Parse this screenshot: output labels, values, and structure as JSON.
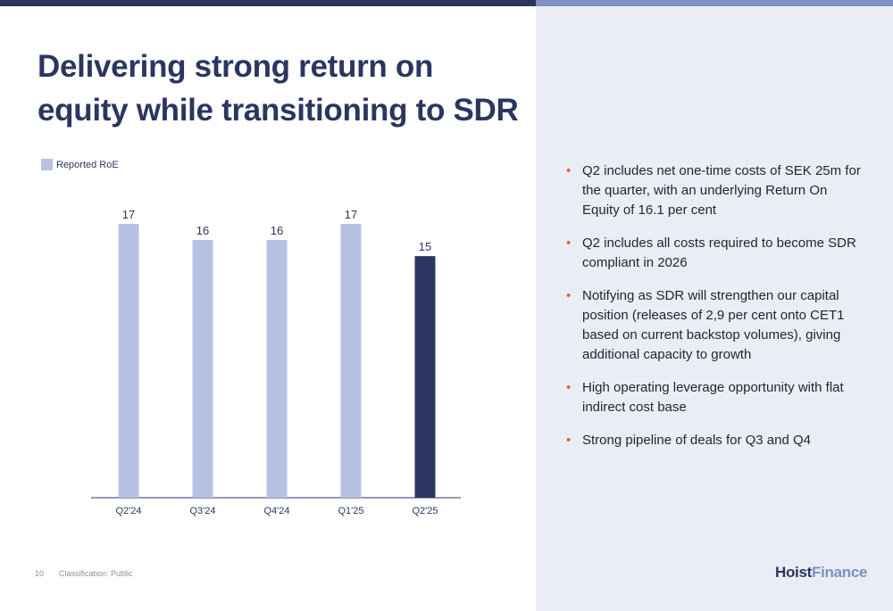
{
  "title": "Delivering strong return on equity while transitioning to SDR",
  "chart_data": {
    "type": "bar",
    "categories": [
      "Q2'24",
      "Q3'24",
      "Q4'24",
      "Q1'25",
      "Q2'25"
    ],
    "series": [
      {
        "name": "Reported RoE",
        "values": [
          17,
          16,
          16,
          17,
          15
        ]
      }
    ],
    "value_labels": [
      "17",
      "16",
      "16",
      "17",
      "15"
    ],
    "bar_colors": [
      "#b8c0e4",
      "#b8c0e4",
      "#b8c0e4",
      "#b8c0e4",
      "#2b3660"
    ],
    "legend": {
      "label": "Reported RoE",
      "color": "#b8c0e4",
      "position": "top-left"
    },
    "ylim": [
      0,
      17.5
    ],
    "grid": false,
    "xlabel": "",
    "ylabel": ""
  },
  "bullets": [
    "Q2 includes net one-time costs of SEK 25m for the quarter, with an underlying Return On Equity of 16.1 per cent",
    "Q2 includes all costs required to become SDR compliant in 2026",
    "Notifying as SDR will strengthen our capital position (releases of 2,9 per cent onto CET1 based on current backstop volumes), giving additional capacity to growth",
    "High operating leverage opportunity with flat indirect cost base",
    "Strong pipeline of deals for Q3 and Q4"
  ],
  "bullet_symbol": "•",
  "footer": {
    "page_number": "10",
    "classification": "Classification: Public"
  },
  "logo": {
    "part1": "Hoist",
    "part2": "Finance"
  },
  "colors": {
    "navy": "#2b3660",
    "light_bar": "#b8c0e4",
    "accent": "#e2604a",
    "panel": "#ebedf6",
    "top_bar_right": "#7f8fc4"
  }
}
